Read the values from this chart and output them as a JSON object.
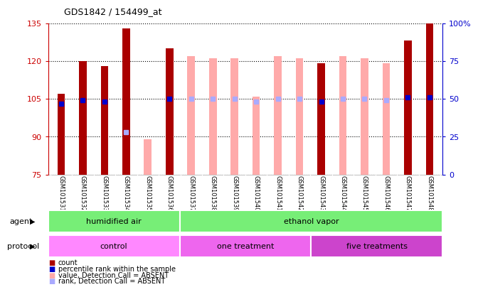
{
  "title": "GDS1842 / 154499_at",
  "samples": [
    "GSM101531",
    "GSM101532",
    "GSM101533",
    "GSM101534",
    "GSM101535",
    "GSM101536",
    "GSM101537",
    "GSM101538",
    "GSM101539",
    "GSM101540",
    "GSM101541",
    "GSM101542",
    "GSM101543",
    "GSM101544",
    "GSM101545",
    "GSM101546",
    "GSM101547",
    "GSM101548"
  ],
  "count_values": [
    107,
    120,
    118,
    133,
    null,
    125,
    null,
    null,
    null,
    null,
    null,
    null,
    119,
    null,
    null,
    null,
    128,
    135
  ],
  "count_percentile": [
    47,
    49,
    48,
    null,
    null,
    50,
    null,
    null,
    null,
    null,
    null,
    null,
    48,
    null,
    null,
    null,
    51,
    51
  ],
  "absent_values": [
    null,
    null,
    null,
    null,
    89,
    null,
    122,
    121,
    121,
    106,
    122,
    121,
    null,
    122,
    121,
    119,
    null,
    null
  ],
  "absent_rank": [
    null,
    null,
    null,
    28,
    null,
    null,
    50,
    50,
    50,
    48,
    50,
    50,
    null,
    50,
    50,
    49,
    null,
    null
  ],
  "ylim_left": [
    75,
    135
  ],
  "ylim_right": [
    0,
    100
  ],
  "yticks_left": [
    75,
    90,
    105,
    120,
    135
  ],
  "yticks_right": [
    0,
    25,
    50,
    75,
    100
  ],
  "bar_width": 0.35,
  "count_color": "#aa0000",
  "count_percentile_color": "#0000cc",
  "absent_value_color": "#ffaaaa",
  "absent_rank_color": "#aaaaff",
  "bg_color": "#ffffff",
  "label_area_bg": "#cccccc",
  "left_label_color": "#cc0000",
  "right_label_color": "#0000cc",
  "agent_groups": [
    {
      "label": "humidified air",
      "start": 0,
      "end": 6,
      "color": "#77ee77"
    },
    {
      "label": "ethanol vapor",
      "start": 6,
      "end": 18,
      "color": "#77ee77"
    }
  ],
  "protocol_groups": [
    {
      "label": "control",
      "start": 0,
      "end": 6,
      "color": "#ff88ff"
    },
    {
      "label": "one treatment",
      "start": 6,
      "end": 12,
      "color": "#ee66ee"
    },
    {
      "label": "five treatments",
      "start": 12,
      "end": 18,
      "color": "#cc44cc"
    }
  ],
  "legend_items": [
    {
      "color": "#aa0000",
      "label": "count"
    },
    {
      "color": "#0000cc",
      "label": "percentile rank within the sample"
    },
    {
      "color": "#ffaaaa",
      "label": "value, Detection Call = ABSENT"
    },
    {
      "color": "#aaaaff",
      "label": "rank, Detection Call = ABSENT"
    }
  ]
}
